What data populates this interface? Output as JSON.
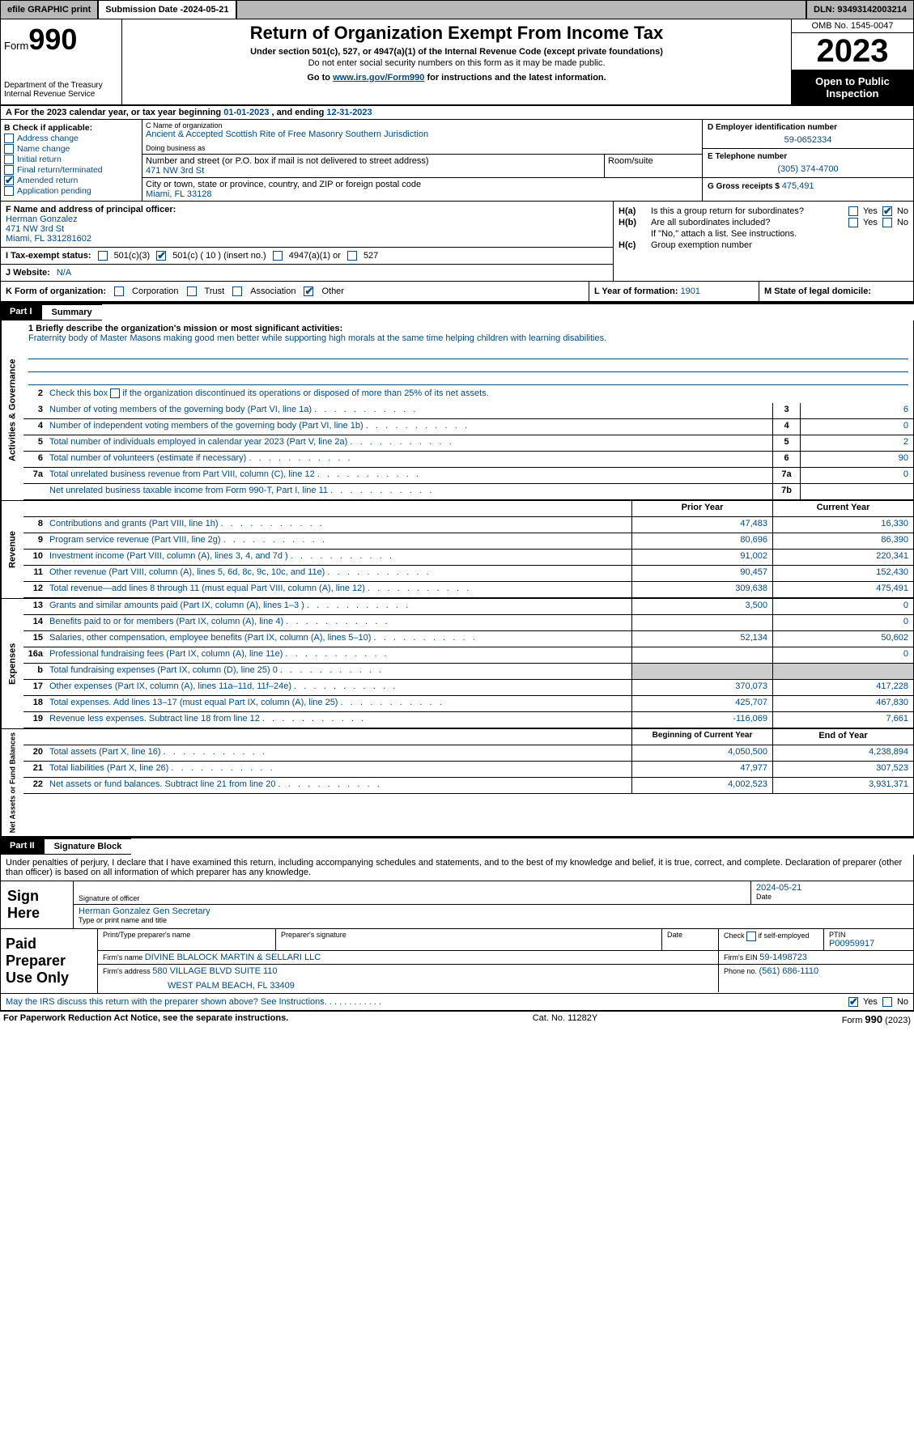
{
  "topbar": {
    "efile": "efile GRAPHIC print",
    "submission_label": "Submission Date - ",
    "submission_date": "2024-05-21",
    "dln_label": "DLN: ",
    "dln": "93493142003214"
  },
  "header": {
    "form_word": "Form",
    "form_num": "990",
    "title": "Return of Organization Exempt From Income Tax",
    "subtitle": "Under section 501(c), 527, or 4947(a)(1) of the Internal Revenue Code (except private foundations)",
    "ssn_note": "Do not enter social security numbers on this form as it may be made public.",
    "goto_pre": "Go to ",
    "goto_url": "www.irs.gov/Form990",
    "goto_post": " for instructions and the latest information.",
    "dept": "Department of the Treasury Internal Revenue Service",
    "omb": "OMB No. 1545-0047",
    "year": "2023",
    "open_public": "Open to Public Inspection"
  },
  "row_a": {
    "text_pre": "A For the 2023 calendar year, or tax year beginning ",
    "begin": "01-01-2023",
    "mid": " , and ending ",
    "end": "12-31-2023"
  },
  "box_b": {
    "label": "B Check if applicable:",
    "items": [
      {
        "label": "Address change",
        "checked": false
      },
      {
        "label": "Name change",
        "checked": false
      },
      {
        "label": "Initial return",
        "checked": false
      },
      {
        "label": "Final return/terminated",
        "checked": false
      },
      {
        "label": "Amended return",
        "checked": true
      },
      {
        "label": "Application pending",
        "checked": false
      }
    ]
  },
  "box_c": {
    "name_lbl": "C Name of organization",
    "name": "Ancient & Accepted Scottish Rite of Free Masonry Southern Jurisdiction",
    "dba_lbl": "Doing business as",
    "dba": "",
    "street_lbl": "Number and street (or P.O. box if mail is not delivered to street address)",
    "street": "471 NW 3rd St",
    "room_lbl": "Room/suite",
    "room": "",
    "city_lbl": "City or town, state or province, country, and ZIP or foreign postal code",
    "city": "Miami, FL  33128"
  },
  "box_d": {
    "ein_lbl": "D Employer identification number",
    "ein": "59-0652334",
    "phone_lbl": "E Telephone number",
    "phone": "(305) 374-4700",
    "gross_lbl": "G Gross receipts $ ",
    "gross": "475,491"
  },
  "box_f": {
    "lbl": "F Name and address of principal officer:",
    "name": "Herman Gonzalez",
    "addr1": "471 NW 3rd St",
    "addr2": "Miami, FL  331281602"
  },
  "box_h": {
    "a_lbl": "H(a)",
    "a_text": "Is this a group return for subordinates?",
    "a_yes": false,
    "a_no": true,
    "b_lbl": "H(b)",
    "b_text": "Are all subordinates included?",
    "b_yes": false,
    "b_no": false,
    "b_note": "If \"No,\" attach a list. See instructions.",
    "c_lbl": "H(c)",
    "c_text": "Group exemption number  "
  },
  "row_i": {
    "lbl": "I   Tax-exempt status:",
    "o1": "501(c)(3)",
    "o2": "501(c) ( 10 ) (insert no.)",
    "o3": "4947(a)(1) or",
    "o4": "527"
  },
  "row_j": {
    "lbl": "J   Website: ",
    "val": "N/A"
  },
  "row_k": {
    "lbl": "K Form of organization:",
    "opts": [
      "Corporation",
      "Trust",
      "Association",
      "Other"
    ],
    "checked_idx": 3
  },
  "row_l": {
    "lbl": "L Year of formation: ",
    "val": "1901"
  },
  "row_m": {
    "lbl": "M State of legal domicile:",
    "val": ""
  },
  "part1": {
    "num": "Part I",
    "title": "Summary"
  },
  "mission": {
    "lbl": "1   Briefly describe the organization's mission or most significant activities:",
    "val": "Fraternity body of Master Masons making good men better while supporting high morals at the same time helping children with learning disabilities."
  },
  "summary_sections": {
    "gov": "Activities & Governance",
    "rev": "Revenue",
    "exp": "Expenses",
    "net": "Net Assets or Fund Balances"
  },
  "gov_lines": {
    "l2": "Check this box        if the organization discontinued its operations or disposed of more than 25% of its net assets.",
    "l3": {
      "n": "3",
      "d": "Number of voting members of the governing body (Part VI, line 1a)",
      "box": "3",
      "v": "6"
    },
    "l4": {
      "n": "4",
      "d": "Number of independent voting members of the governing body (Part VI, line 1b)",
      "box": "4",
      "v": "0"
    },
    "l5": {
      "n": "5",
      "d": "Total number of individuals employed in calendar year 2023 (Part V, line 2a)",
      "box": "5",
      "v": "2"
    },
    "l6": {
      "n": "6",
      "d": "Total number of volunteers (estimate if necessary)",
      "box": "6",
      "v": "90"
    },
    "l7a": {
      "n": "7a",
      "d": "Total unrelated business revenue from Part VIII, column (C), line 12",
      "box": "7a",
      "v": "0"
    },
    "l7b": {
      "n": "",
      "d": "Net unrelated business taxable income from Form 990-T, Part I, line 11",
      "box": "7b",
      "v": ""
    }
  },
  "year_hdr": {
    "py": "Prior Year",
    "cy": "Current Year"
  },
  "rev_lines": [
    {
      "n": "8",
      "d": "Contributions and grants (Part VIII, line 1h)",
      "py": "47,483",
      "cy": "16,330"
    },
    {
      "n": "9",
      "d": "Program service revenue (Part VIII, line 2g)",
      "py": "80,696",
      "cy": "86,390"
    },
    {
      "n": "10",
      "d": "Investment income (Part VIII, column (A), lines 3, 4, and 7d )",
      "py": "91,002",
      "cy": "220,341"
    },
    {
      "n": "11",
      "d": "Other revenue (Part VIII, column (A), lines 5, 6d, 8c, 9c, 10c, and 11e)",
      "py": "90,457",
      "cy": "152,430"
    },
    {
      "n": "12",
      "d": "Total revenue—add lines 8 through 11 (must equal Part VIII, column (A), line 12)",
      "py": "309,638",
      "cy": "475,491"
    }
  ],
  "exp_lines": [
    {
      "n": "13",
      "d": "Grants and similar amounts paid (Part IX, column (A), lines 1–3 )",
      "py": "3,500",
      "cy": "0"
    },
    {
      "n": "14",
      "d": "Benefits paid to or for members (Part IX, column (A), line 4)",
      "py": "",
      "cy": "0"
    },
    {
      "n": "15",
      "d": "Salaries, other compensation, employee benefits (Part IX, column (A), lines 5–10)",
      "py": "52,134",
      "cy": "50,602"
    },
    {
      "n": "16a",
      "d": "Professional fundraising fees (Part IX, column (A), line 11e)",
      "py": "",
      "cy": "0"
    },
    {
      "n": "b",
      "d": "Total fundraising expenses (Part IX, column (D), line 25) 0",
      "py": "GREY",
      "cy": "GREY"
    },
    {
      "n": "17",
      "d": "Other expenses (Part IX, column (A), lines 11a–11d, 11f–24e)",
      "py": "370,073",
      "cy": "417,228"
    },
    {
      "n": "18",
      "d": "Total expenses. Add lines 13–17 (must equal Part IX, column (A), line 25)",
      "py": "425,707",
      "cy": "467,830"
    },
    {
      "n": "19",
      "d": "Revenue less expenses. Subtract line 18 from line 12",
      "py": "-116,069",
      "cy": "7,661"
    }
  ],
  "net_hdr": {
    "py": "Beginning of Current Year",
    "cy": "End of Year"
  },
  "net_lines": [
    {
      "n": "20",
      "d": "Total assets (Part X, line 16)",
      "py": "4,050,500",
      "cy": "4,238,894"
    },
    {
      "n": "21",
      "d": "Total liabilities (Part X, line 26)",
      "py": "47,977",
      "cy": "307,523"
    },
    {
      "n": "22",
      "d": "Net assets or fund balances. Subtract line 21 from line 20",
      "py": "4,002,523",
      "cy": "3,931,371"
    }
  ],
  "part2": {
    "num": "Part II",
    "title": "Signature Block"
  },
  "sig_intro": "Under penalties of perjury, I declare that I have examined this return, including accompanying schedules and statements, and to the best of my knowledge and belief, it is true, correct, and complete. Declaration of preparer (other than officer) is based on all information of which preparer has any knowledge.",
  "sign": {
    "here": "Sign Here",
    "sig_lbl": "Signature of officer",
    "date_lbl": "Date",
    "date_val": "2024-05-21",
    "name": "Herman Gonzalez Gen Secretary",
    "type_lbl": "Type or print name and title"
  },
  "paid": {
    "title": "Paid Preparer Use Only",
    "r1": {
      "c1_lbl": "Print/Type preparer's name",
      "c1": "",
      "c2_lbl": "Preparer's signature",
      "c2": "",
      "c3_lbl": "Date",
      "c3": "",
      "c4_lbl": "Check         if self-employed",
      "c5_lbl": "PTIN",
      "c5": "P00959917"
    },
    "r2": {
      "firm_lbl": "Firm's name   ",
      "firm": "DIVINE BLALOCK MARTIN & SELLARI LLC",
      "ein_lbl": "Firm's EIN  ",
      "ein": "59-1498723"
    },
    "r3": {
      "addr_lbl": "Firm's address ",
      "addr": "580 VILLAGE BLVD SUITE 110",
      "addr2": "WEST PALM BEACH, FL  33409",
      "phone_lbl": "Phone no. ",
      "phone": "(561) 686-1110"
    }
  },
  "may_irs": {
    "text": "May the IRS discuss this return with the preparer shown above? See Instructions.",
    "yes": true,
    "no": false
  },
  "footer": {
    "left": "For Paperwork Reduction Act Notice, see the separate instructions.",
    "mid": "Cat. No. 11282Y",
    "right_pre": "Form ",
    "right_num": "990",
    "right_post": " (2023)"
  },
  "colors": {
    "link": "#004b8d",
    "topbar": "#b8b8b8",
    "grey": "#cccccc"
  }
}
